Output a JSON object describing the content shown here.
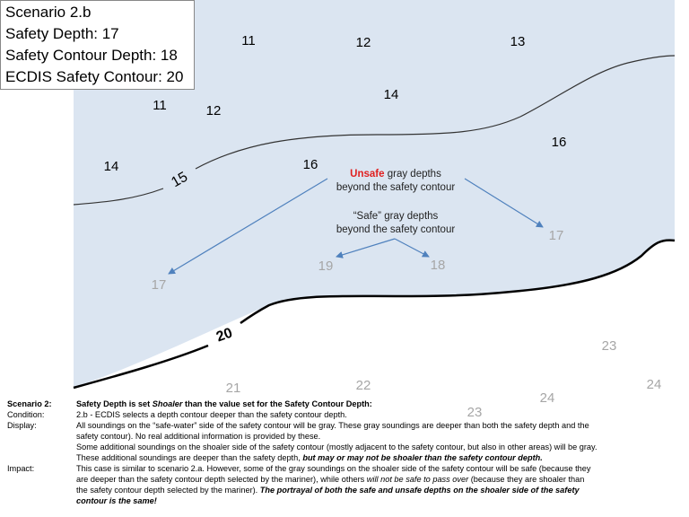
{
  "info_box": {
    "lines": [
      "Scenario 2.b",
      "Safety Depth: 17",
      "Safety Contour Depth: 18",
      "ECDIS Safety Contour: 20"
    ]
  },
  "soundings": {
    "black": [
      11,
      12,
      13,
      14,
      11,
      12,
      16,
      14,
      16
    ],
    "gray": [
      17,
      19,
      18,
      17,
      23,
      21,
      22,
      23,
      24,
      24
    ]
  },
  "contours": {
    "shallow": "15",
    "safety": "20"
  },
  "annotations": {
    "unsafe": {
      "highlight": "Unsafe",
      "rest": " gray depths",
      "line2": "beyond the safety contour"
    },
    "safe": {
      "line1": "“Safe” gray depths",
      "line2": "beyond the safety contour"
    }
  },
  "notes": {
    "scenario": {
      "label": "Scenario 2:",
      "parts": [
        "Safety Depth is set ",
        "Shoaler",
        " than the value set for the Safety Contour Depth:"
      ]
    },
    "condition": {
      "label": "Condition:",
      "text": "2.b - ECDIS selects a depth contour deeper than the safety contour depth."
    },
    "display": {
      "label": "Display:",
      "lines": [
        "All soundings on the “safe-water” side of the safety contour will be gray. These gray soundings are deeper than both the safety depth and the",
        "safety contour).  No real additional information is provided by these.",
        "Some additional soundings on the shoaler side of the safety contour (mostly adjacent to the safety contour, but also in other areas) will be gray.",
        [
          "These additional soundings are deeper than the safety depth, ",
          "but may or may not be shoaler than the safety contour  depth."
        ]
      ]
    },
    "impact": {
      "label": "Impact:",
      "lines": [
        "This case is similar to scenario 2.a. However, some of the gray soundings on the shoaler side of the safety contour will be safe (because they",
        [
          "are deeper than the safety contour depth selected by the mariner), while others ",
          "will not be safe to pass over",
          "  (because they are shoaler than"
        ],
        [
          "the safety contour depth selected by the mariner).  ",
          "The portrayal of both the safe and unsafe depths on the shoaler side of the safety"
        ],
        "contour is the same!"
      ]
    }
  }
}
